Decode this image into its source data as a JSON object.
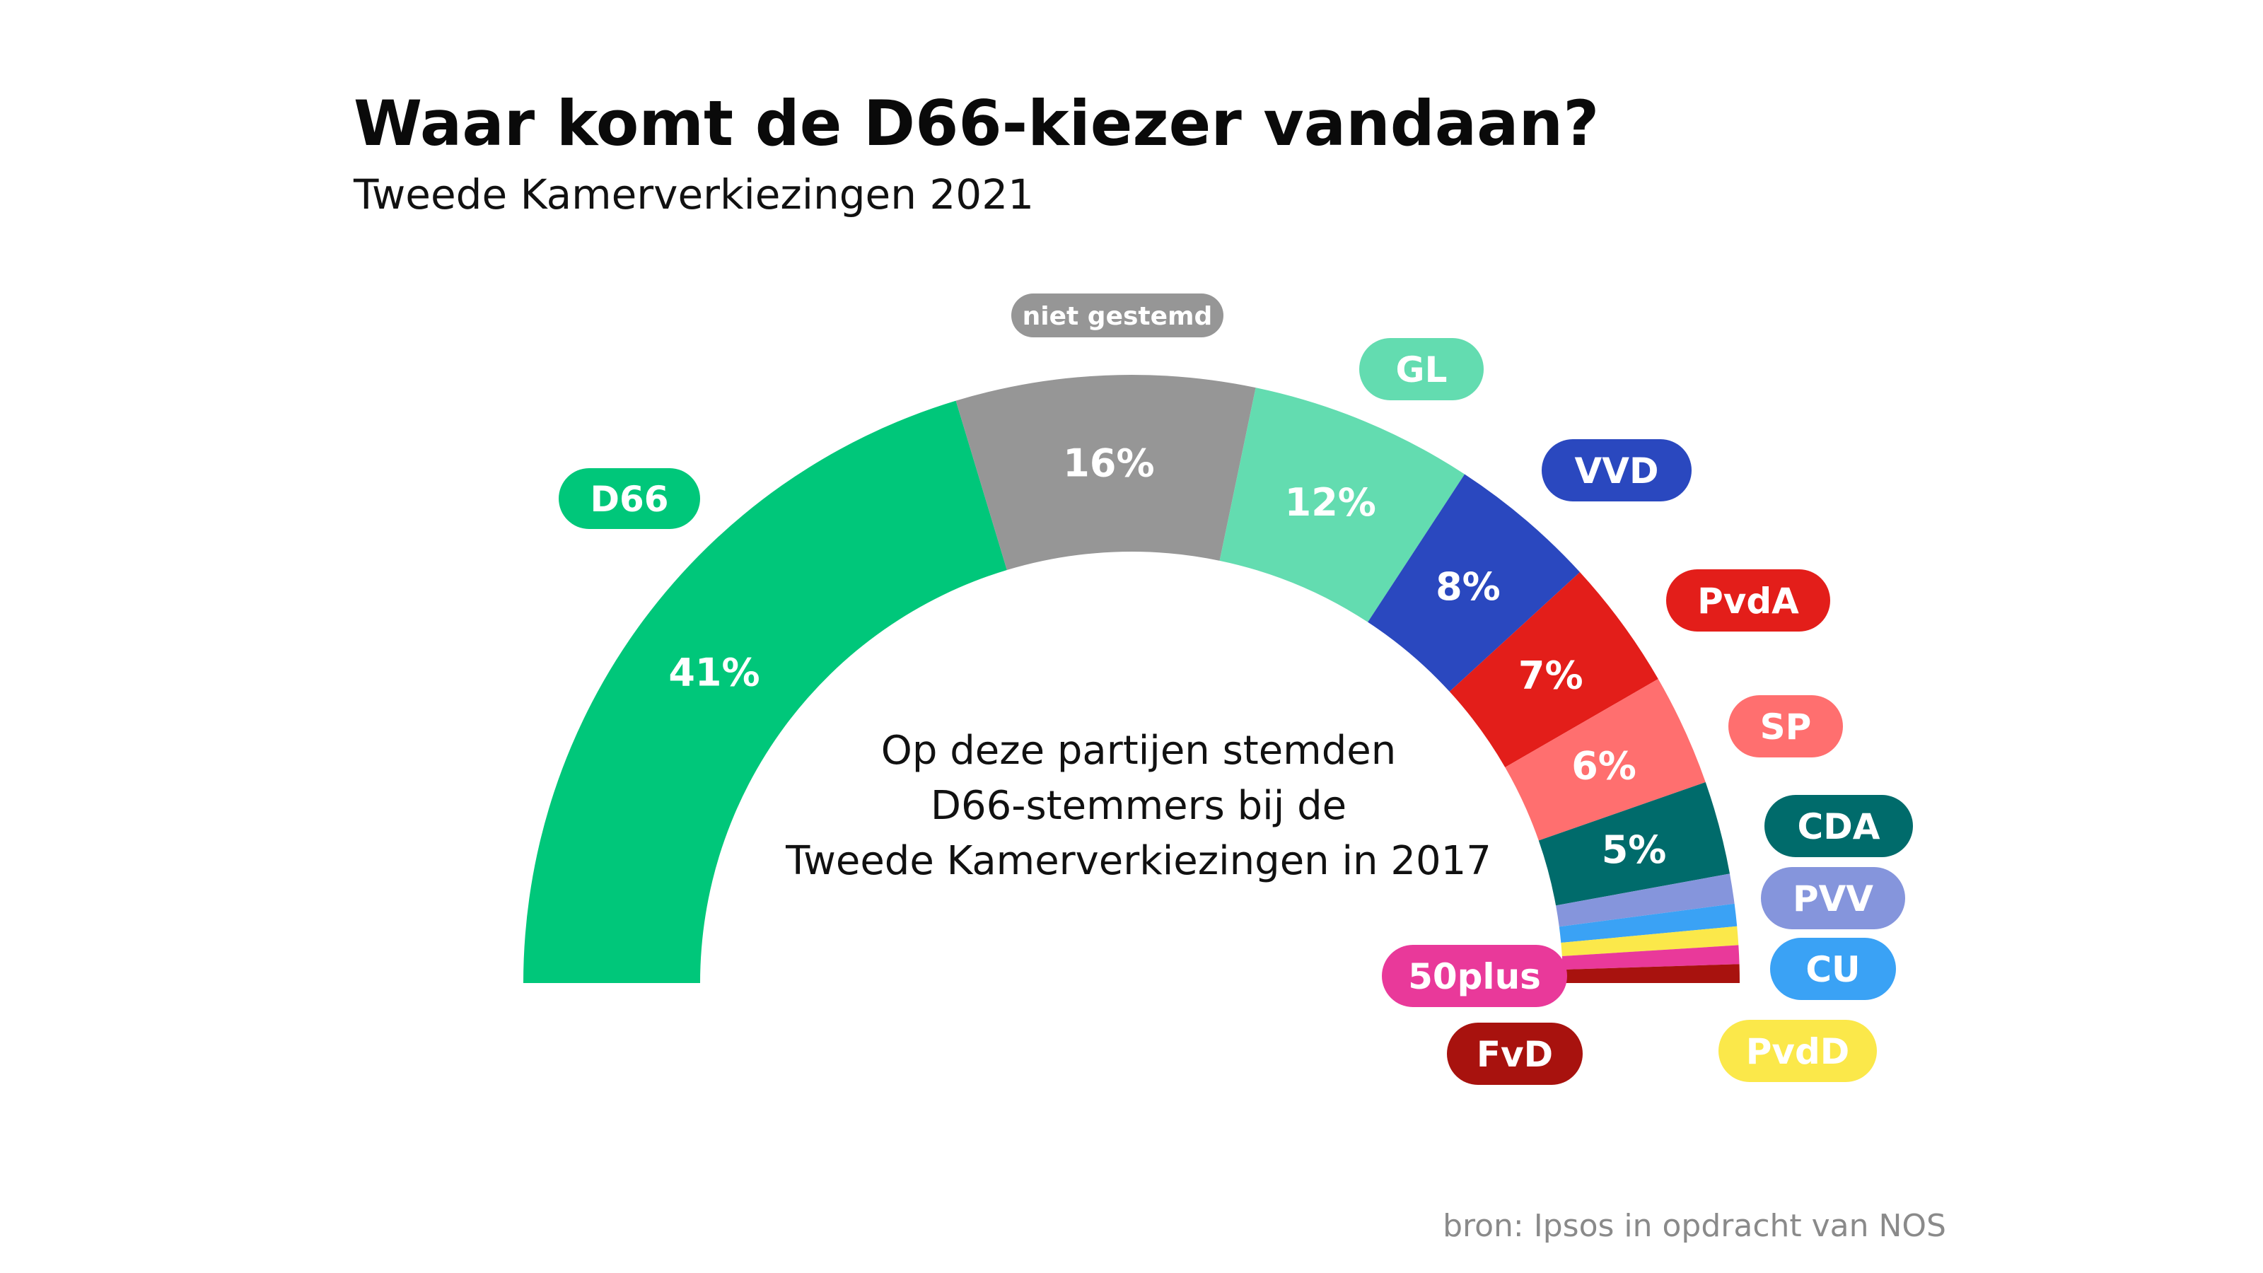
{
  "header": {
    "title": "Waar komt de D66-kiezer vandaan?",
    "subtitle": "Tweede Kamerverkiezingen 2021"
  },
  "center_text": [
    "Op deze partijen stemden",
    "D66-stemmers bij de",
    "Tweede Kamerverkiezingen in 2017"
  ],
  "source": "bron: Ipsos in opdracht van NOS",
  "chart_data": {
    "type": "pie",
    "subtype": "semicircle",
    "title": "Waar komt de D66-kiezer vandaan?",
    "subtitle": "Tweede Kamerverkiezingen 2021",
    "unit": "%",
    "slices": [
      {
        "party": "D66",
        "value": 41,
        "label": "41%",
        "color": "#00c77a"
      },
      {
        "party": "niet gestemd",
        "value": 16,
        "label": "16%",
        "color": "#969696"
      },
      {
        "party": "GL",
        "value": 12,
        "label": "12%",
        "color": "#63dcb0"
      },
      {
        "party": "VVD",
        "value": 8,
        "label": "8%",
        "color": "#2a48bf"
      },
      {
        "party": "PvdA",
        "value": 7,
        "label": "7%",
        "color": "#e31e1a"
      },
      {
        "party": "SP",
        "value": 6,
        "label": "6%",
        "color": "#ff6f6f"
      },
      {
        "party": "CDA",
        "value": 5,
        "label": "5%",
        "color": "#006b6b"
      },
      {
        "party": "PVV",
        "value": 1.6,
        "label": "",
        "color": "#8595dc"
      },
      {
        "party": "CU",
        "value": 1.2,
        "label": "",
        "color": "#3aa2f5"
      },
      {
        "party": "PvdD",
        "value": 1.0,
        "label": "",
        "color": "#fbe84a"
      },
      {
        "party": "50plus",
        "value": 1.0,
        "label": "",
        "color": "#e9399a"
      },
      {
        "party": "FvD",
        "value": 1.0,
        "label": "",
        "color": "#a8120e"
      }
    ]
  }
}
